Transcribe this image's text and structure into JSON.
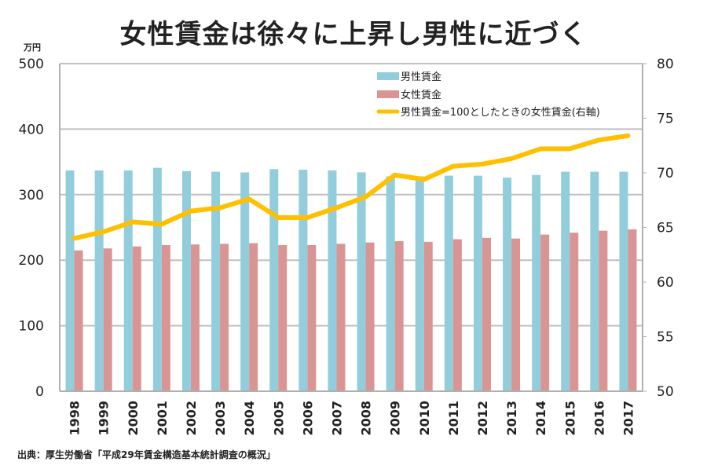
{
  "title": "女性賃金は徐々に上昇し男性に近づく",
  "unit_label": "万円",
  "source": "出典：厚生労働省「平成29年賃金構造基本統計調査の概況」",
  "colors": {
    "male": "#92cddc",
    "female": "#d99594",
    "ratio": "#ffc000",
    "grid": "#c0c0c0",
    "axis": "#b0b0b0"
  },
  "chart_data": {
    "type": "bar",
    "title": "女性賃金は徐々に上昇し男性に近づく",
    "xlabel": "",
    "ylabel": "万円",
    "categories": [
      "1998",
      "1999",
      "2000",
      "2001",
      "2002",
      "2003",
      "2004",
      "2005",
      "2006",
      "2007",
      "2008",
      "2009",
      "2010",
      "2011",
      "2012",
      "2013",
      "2014",
      "2015",
      "2016",
      "2017"
    ],
    "ylim": [
      0,
      500
    ],
    "y_ticks": [
      0,
      100,
      200,
      300,
      400,
      500
    ],
    "y2lim": [
      50,
      80
    ],
    "y2_ticks": [
      50,
      55,
      60,
      65,
      70,
      75,
      80
    ],
    "grid": true,
    "legend_position": "top-right",
    "series": [
      {
        "name": "男性賃金",
        "type": "bar",
        "axis": "left",
        "values": [
          337,
          337,
          337,
          341,
          336,
          335,
          334,
          339,
          338,
          337,
          334,
          328,
          328,
          329,
          329,
          326,
          330,
          335,
          335,
          335
        ]
      },
      {
        "name": "女性賃金",
        "type": "bar",
        "axis": "left",
        "values": [
          215,
          218,
          221,
          223,
          224,
          225,
          226,
          223,
          223,
          225,
          227,
          229,
          228,
          232,
          234,
          233,
          239,
          242,
          245,
          247
        ]
      },
      {
        "name": "男性賃金=100としたときの女性賃金(右軸)",
        "type": "line",
        "axis": "right",
        "values": [
          64.0,
          64.6,
          65.5,
          65.3,
          66.5,
          66.8,
          67.6,
          65.9,
          65.9,
          66.8,
          67.8,
          69.8,
          69.4,
          70.6,
          70.8,
          71.3,
          72.2,
          72.2,
          73.0,
          73.4
        ]
      }
    ]
  }
}
